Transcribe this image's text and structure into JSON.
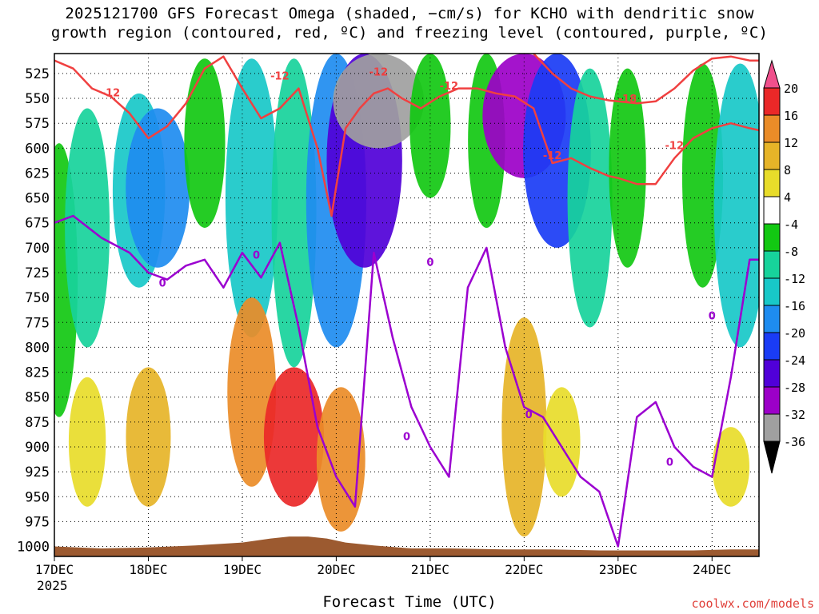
{
  "chart_data": {
    "type": "heatmap",
    "title_line1": "2025121700 GFS Forecast Omega (shaded, −cm/s) for KCHO with dendritic snow",
    "title_line2": "growth region (contoured, red, ºC) and freezing level (contoured, purple, ºC)",
    "xlabel": "Forecast Time (UTC)",
    "ylabel": "",
    "credit": "coolwx.com/models",
    "y_axis": {
      "range": [
        1010,
        505
      ],
      "ticks": [
        525,
        550,
        575,
        600,
        625,
        650,
        675,
        700,
        725,
        750,
        775,
        800,
        825,
        850,
        875,
        900,
        925,
        950,
        975,
        1000
      ],
      "tick_labels": [
        "525",
        "550",
        "575",
        "600",
        "625",
        "650",
        "675",
        "700",
        "725",
        "750",
        "775",
        "800",
        "825",
        "850",
        "875",
        "900",
        "925",
        "950",
        "975",
        "1000"
      ]
    },
    "x_axis": {
      "range": [
        0,
        7.5
      ],
      "ticks": [
        0,
        1,
        2,
        3,
        4,
        5,
        6,
        7
      ],
      "tick_labels": [
        "17DEC",
        "18DEC",
        "19DEC",
        "20DEC",
        "21DEC",
        "22DEC",
        "23DEC",
        "24DEC"
      ],
      "year_label": "2025"
    },
    "colorbar": {
      "levels": [
        -36,
        -32,
        -28,
        -24,
        -20,
        -16,
        -12,
        -8,
        -4,
        4,
        8,
        12,
        16,
        20
      ],
      "tick_labels": [
        "-36",
        "-32",
        "-28",
        "-24",
        "-20",
        "-16",
        "-12",
        "-8",
        "-4",
        "4",
        "8",
        "12",
        "16",
        "20"
      ],
      "colors": [
        "#000000",
        "#a0a0a0",
        "#9c00c8",
        "#5000d8",
        "#1a3cf5",
        "#1e8cf0",
        "#18c8c8",
        "#17d39b",
        "#12c812",
        "#ffffff",
        "#e8dc2a",
        "#e6b428",
        "#ea8c28",
        "#ea2828",
        "#f0508c"
      ]
    },
    "contours": {
      "dgz_label": "-12",
      "dgz_label_cold": "-18",
      "freezing_label": "0",
      "dgz_color": "#f04040",
      "freezing_color": "#9b00d0"
    },
    "shaded_regions": [
      {
        "t": 0.05,
        "p": [
          595,
          870
        ],
        "v": -6
      },
      {
        "t": 0.35,
        "p": [
          560,
          800
        ],
        "v": -10
      },
      {
        "t": 0.9,
        "p": [
          545,
          740
        ],
        "v": -14
      },
      {
        "t": 1.1,
        "p": [
          560,
          720
        ],
        "v": -20
      },
      {
        "t": 1.6,
        "p": [
          510,
          680
        ],
        "v": -8
      },
      {
        "t": 2.1,
        "p": [
          510,
          790
        ],
        "v": -14
      },
      {
        "t": 2.55,
        "p": [
          510,
          820
        ],
        "v": -10
      },
      {
        "t": 3.0,
        "p": [
          505,
          800
        ],
        "v": -18
      },
      {
        "t": 3.3,
        "p": [
          505,
          720
        ],
        "v": -26
      },
      {
        "t": 3.45,
        "p": [
          505,
          600
        ],
        "v": -34
      },
      {
        "t": 4.0,
        "p": [
          505,
          650
        ],
        "v": -8
      },
      {
        "t": 4.6,
        "p": [
          505,
          680
        ],
        "v": -6
      },
      {
        "t": 5.0,
        "p": [
          505,
          630
        ],
        "v": -30
      },
      {
        "t": 5.35,
        "p": [
          505,
          700
        ],
        "v": -22
      },
      {
        "t": 5.7,
        "p": [
          520,
          780
        ],
        "v": -10
      },
      {
        "t": 6.1,
        "p": [
          520,
          720
        ],
        "v": -6
      },
      {
        "t": 6.9,
        "p": [
          515,
          740
        ],
        "v": -8
      },
      {
        "t": 7.3,
        "p": [
          515,
          800
        ],
        "v": -14
      },
      {
        "t": 1.0,
        "p": [
          820,
          960
        ],
        "v": 10
      },
      {
        "t": 2.1,
        "p": [
          750,
          940
        ],
        "v": 12
      },
      {
        "t": 2.55,
        "p": [
          820,
          960
        ],
        "v": 18
      },
      {
        "t": 3.05,
        "p": [
          840,
          985
        ],
        "v": 12
      },
      {
        "t": 5.0,
        "p": [
          770,
          990
        ],
        "v": 10
      },
      {
        "t": 0.35,
        "p": [
          830,
          960
        ],
        "v": 6
      },
      {
        "t": 7.2,
        "p": [
          880,
          960
        ],
        "v": 6
      },
      {
        "t": 5.4,
        "p": [
          840,
          950
        ],
        "v": 6
      }
    ],
    "dgz_minus12": {
      "t": [
        0.0,
        0.2,
        0.4,
        0.6,
        0.8,
        1.0,
        1.2,
        1.4,
        1.6,
        1.8,
        2.0,
        2.2,
        2.4,
        2.6,
        2.8,
        2.95,
        3.1,
        3.25,
        3.4,
        3.55,
        3.7,
        3.9,
        4.1,
        4.3,
        4.5,
        4.7,
        4.9,
        5.1,
        5.3,
        5.5,
        5.7,
        5.9,
        6.0,
        6.2,
        6.4,
        6.6,
        6.8,
        7.0,
        7.2,
        7.4,
        7.5
      ],
      "p": [
        512,
        520,
        540,
        548,
        565,
        590,
        578,
        555,
        520,
        508,
        540,
        570,
        560,
        540,
        600,
        668,
        580,
        560,
        545,
        540,
        550,
        560,
        548,
        540,
        540,
        545,
        548,
        560,
        615,
        610,
        620,
        628,
        630,
        636,
        636,
        610,
        590,
        580,
        575,
        580,
        582
      ]
    },
    "dgz_minus12_upper": {
      "t": [
        5.1,
        5.3,
        5.5,
        5.7,
        5.9,
        6.0,
        6.2,
        6.4,
        6.6,
        6.8,
        7.0,
        7.2,
        7.4,
        7.5
      ],
      "p": [
        505,
        525,
        540,
        548,
        552,
        553,
        555,
        553,
        540,
        522,
        510,
        508,
        512,
        512
      ]
    },
    "freezing_level": {
      "t": [
        0.0,
        0.2,
        0.5,
        0.8,
        1.0,
        1.2,
        1.4,
        1.6,
        1.8,
        2.0,
        2.2,
        2.4,
        2.6,
        2.8,
        3.0,
        3.2,
        3.4,
        3.6,
        3.8,
        4.0,
        4.2,
        4.4,
        4.6,
        4.8,
        5.0,
        5.2,
        5.4,
        5.6,
        5.8,
        6.0,
        6.2,
        6.4,
        6.6,
        6.8,
        7.0,
        7.2,
        7.4,
        7.5
      ],
      "p": [
        675,
        668,
        690,
        705,
        725,
        732,
        718,
        712,
        740,
        705,
        730,
        695,
        780,
        880,
        930,
        960,
        705,
        790,
        860,
        900,
        930,
        740,
        700,
        800,
        860,
        870,
        900,
        930,
        945,
        1000,
        870,
        855,
        900,
        920,
        930,
        830,
        712,
        712
      ]
    }
  }
}
